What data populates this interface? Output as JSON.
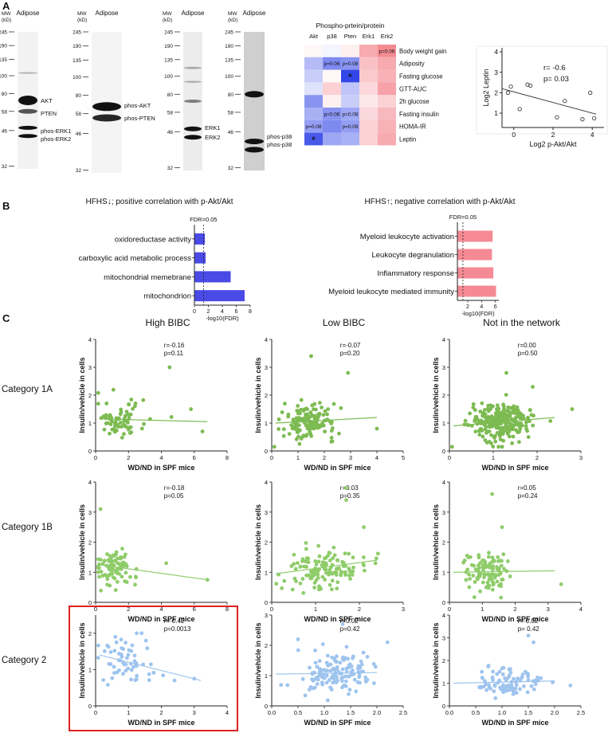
{
  "panel_labels": {
    "a": "A",
    "b": "B",
    "c": "C"
  },
  "blots": {
    "mw_header": "MW",
    "mw_unit": "(kD)",
    "tissue": "Adipose",
    "markers": [
      "245",
      "190",
      "135",
      "100",
      "80",
      "58",
      "46",
      "32"
    ],
    "blot1_labels": [
      "AKT",
      "PTEN",
      "phos-ERK1",
      "phos-ERK2"
    ],
    "blot2_labels": [
      "phos-AKT",
      "phos-PTEN"
    ],
    "blot3_labels": [
      "ERK1",
      "ERK2"
    ],
    "blot4_labels": [
      "phos-p38",
      "phos-p38"
    ]
  },
  "heatmap": {
    "title": "Phospho-prtein/protein",
    "columns": [
      "Akt",
      "p38",
      "Pten",
      "Erk1",
      "Erk2"
    ],
    "rows": [
      "Body weight gain",
      "Adiposity",
      "Fasting glucose",
      "GTT-AUC",
      "2h glucose",
      "Fasting insulin",
      "HOMA-IR",
      "Leptin"
    ],
    "values": [
      [
        0.05,
        -0.05,
        0.1,
        0.55,
        0.75
      ],
      [
        -0.35,
        -0.6,
        -0.55,
        0.4,
        0.55
      ],
      [
        -0.25,
        0.05,
        -0.95,
        0.35,
        0.5
      ],
      [
        -0.15,
        0.3,
        -0.3,
        0.25,
        0.6
      ],
      [
        -0.55,
        0.1,
        -0.25,
        0.15,
        0.3
      ],
      [
        -0.4,
        -0.55,
        -0.45,
        0.25,
        0.45
      ],
      [
        -0.5,
        -0.6,
        -0.5,
        0.3,
        0.5
      ],
      [
        -0.85,
        -0.45,
        -0.4,
        0.3,
        0.55
      ]
    ],
    "annotations": [
      {
        "row": 0,
        "col": 4,
        "text": "p=0.06"
      },
      {
        "row": 1,
        "col": 1,
        "text": "p=0.06"
      },
      {
        "row": 1,
        "col": 2,
        "text": "p=0.08"
      },
      {
        "row": 2,
        "col": 2,
        "text": "*"
      },
      {
        "row": 5,
        "col": 1,
        "text": "p=0.06"
      },
      {
        "row": 5,
        "col": 2,
        "text": "p=0.08"
      },
      {
        "row": 6,
        "col": 2,
        "text": "p=0.09"
      },
      {
        "row": 6,
        "col": 0,
        "text": "p=0.08"
      },
      {
        "row": 7,
        "col": 0,
        "text": "*"
      }
    ]
  },
  "scatter_a": {
    "r_text": "r= -0.6",
    "p_text": "p=  0.03",
    "xlabel": "Log2 p-Akt/Akt",
    "ylabel": "Log2 Leptin",
    "xticks": [
      "0",
      "2",
      "4"
    ],
    "yticks": [
      "1",
      "2",
      "3",
      "4"
    ],
    "xlim": [
      -0.6,
      4.6
    ],
    "ylim": [
      0.3,
      4.2
    ],
    "points": [
      [
        -0.3,
        2.0
      ],
      [
        -0.15,
        2.3
      ],
      [
        0.3,
        1.2
      ],
      [
        0.7,
        2.4
      ],
      [
        0.85,
        2.35
      ],
      [
        2.2,
        0.8
      ],
      [
        2.6,
        1.6
      ],
      [
        3.5,
        0.7
      ],
      [
        3.9,
        2.0
      ],
      [
        4.1,
        0.75
      ]
    ],
    "fit": [
      [
        -0.6,
        2.2
      ],
      [
        4.2,
        0.95
      ]
    ]
  },
  "panel_b": {
    "left_title": "HFHS↓;  positive correlation with p-Akt/Akt",
    "right_title": "HFHS↑;  negative correlation with p-Akt/Akt",
    "fdr_label": "FDR=0.05",
    "xlabel": "-log10(FDR)",
    "left_ticks": [
      "0",
      "2",
      "4",
      "6",
      "8"
    ],
    "right_ticks": [
      "2",
      "4",
      "6"
    ],
    "left_terms": [
      "oxidoreductase activity",
      "carboxylic acid metabolic process",
      "mitochondrial memebrane",
      "mitochondrion"
    ],
    "left_values": [
      1.5,
      1.6,
      5.2,
      7.2
    ],
    "right_terms": [
      "Myeloid leukocyte activation",
      "Leukocyte degranulation",
      "Inflammatory response",
      "Myeloid leukocyte mediated immunity"
    ],
    "right_values": [
      5.6,
      5.5,
      5.7,
      6.1
    ],
    "colors": {
      "left": "#4a4ae6",
      "right": "#f58a95"
    }
  },
  "panel_c": {
    "column_titles": [
      "High BIBC",
      "Low BIBC",
      "Not in the network"
    ],
    "row_titles": [
      "Category 1A",
      "Category 1B",
      "Category 2"
    ],
    "xlabel": "WD/ND in SPF mice",
    "ylabel": "Insulin/vehicle in cells",
    "colors": {
      "1A": "#7dbb52",
      "1B": "#8fcc6a",
      "2": "#9ec4ee"
    },
    "plots": [
      {
        "row": 0,
        "col": 0,
        "r": "r=-0.16",
        "p": "p=0.11",
        "xmax": 8,
        "xticks": [
          "0",
          "2",
          "4",
          "6",
          "8"
        ],
        "ymax": 4,
        "yticks": [
          "0",
          "1",
          "2",
          "3",
          "4"
        ],
        "n": 70,
        "cx": 1.5,
        "sx": 0.8,
        "fit": [
          1.15,
          1.05
        ],
        "out": [
          [
            4.5,
            3.0
          ],
          [
            6.5,
            0.7
          ],
          [
            5.8,
            1.5
          ]
        ]
      },
      {
        "row": 0,
        "col": 1,
        "r": "r=-0.07",
        "p": "p=0.20",
        "xmax": 5,
        "xticks": [
          "0",
          "1",
          "2",
          "3",
          "4",
          "5"
        ],
        "ymax": 4,
        "yticks": [
          "0",
          "1",
          "2",
          "3",
          "4"
        ],
        "n": 150,
        "cx": 1.4,
        "sx": 0.5,
        "fit": [
          1.0,
          1.2
        ],
        "out": [
          [
            2.9,
            2.8
          ],
          [
            4.0,
            0.8
          ],
          [
            1.5,
            3.4
          ]
        ]
      },
      {
        "row": 0,
        "col": 2,
        "r": "r=0.00",
        "p": "p=0.50",
        "xmax": 3,
        "xticks": [
          "0",
          "1",
          "2",
          "3"
        ],
        "ymax": 4,
        "yticks": [
          "0",
          "1",
          "2",
          "3",
          "4"
        ],
        "n": 280,
        "cx": 1.2,
        "sx": 0.35,
        "fit": [
          0.9,
          1.2
        ],
        "out": [
          [
            1.3,
            2.8
          ],
          [
            2.8,
            1.5
          ],
          [
            1.9,
            2.3
          ]
        ]
      },
      {
        "row": 1,
        "col": 0,
        "r": "r=-0.18",
        "p": "p=0.05",
        "xmax": 8,
        "xticks": [
          "0",
          "2",
          "4",
          "6",
          "8"
        ],
        "ymax": 4,
        "yticks": [
          "0",
          "1",
          "2",
          "3",
          "4"
        ],
        "n": 90,
        "cx": 1.1,
        "sx": 0.6,
        "fit": [
          1.25,
          0.75
        ],
        "out": [
          [
            0.3,
            3.1
          ],
          [
            4.3,
            1.3
          ],
          [
            6.8,
            0.75
          ]
        ]
      },
      {
        "row": 1,
        "col": 1,
        "r": "r=0.03",
        "p": "p=0.35",
        "xmax": 3,
        "xticks": [
          "0",
          "1",
          "2",
          "3"
        ],
        "ymax": 4,
        "yticks": [
          "0",
          "1",
          "2",
          "3",
          "4"
        ],
        "n": 130,
        "cx": 1.2,
        "sx": 0.45,
        "fit": [
          0.95,
          1.4
        ],
        "out": [
          [
            1.7,
            3.8
          ],
          [
            1.7,
            3.4
          ],
          [
            2.1,
            2.5
          ]
        ]
      },
      {
        "row": 1,
        "col": 2,
        "r": "r=0.05",
        "p": "p=0.24",
        "xmax": 4,
        "xticks": [
          "0",
          "1",
          "2",
          "3",
          "4"
        ],
        "ymax": 4,
        "yticks": [
          "0",
          "1",
          "2",
          "3",
          "4"
        ],
        "n": 110,
        "cx": 1.1,
        "sx": 0.3,
        "fit": [
          1.0,
          1.05
        ],
        "out": [
          [
            1.3,
            3.6
          ],
          [
            3.4,
            0.6
          ],
          [
            1.6,
            2.5
          ]
        ]
      },
      {
        "row": 2,
        "col": 0,
        "r": "r=-0.42",
        "p": "p=0.0013",
        "xmax": 4,
        "xticks": [
          "0",
          "1",
          "2",
          "3",
          "4"
        ],
        "ymax": 2.5,
        "yticks": [
          "0",
          "1",
          "2"
        ],
        "n": 60,
        "cx": 1.0,
        "sx": 0.5,
        "fit": [
          1.4,
          0.7
        ],
        "out": [
          [
            3.0,
            0.75
          ],
          [
            0.6,
            1.9
          ],
          [
            2.4,
            0.7
          ]
        ]
      },
      {
        "row": 2,
        "col": 1,
        "r": "r=0.02",
        "p": "p=0.42",
        "xmax": 2.5,
        "xticks": [
          "0.0",
          "0.5",
          "1.0",
          "1.5",
          "2.0",
          "2.5"
        ],
        "ymax": 3,
        "yticks": [
          "0",
          "1",
          "2",
          "3"
        ],
        "n": 140,
        "cx": 1.2,
        "sx": 0.35,
        "fit": [
          1.05,
          1.1
        ],
        "out": [
          [
            0.5,
            2.2
          ],
          [
            2.2,
            2.1
          ],
          [
            1.35,
            2.7
          ]
        ]
      },
      {
        "row": 2,
        "col": 2,
        "r": "r=-0.02",
        "p": "p= 0.42",
        "xmax": 2.5,
        "xticks": [
          "0.0",
          "0.5",
          "1.0",
          "1.5",
          "2.0",
          "2.5"
        ],
        "ymax": 4,
        "yticks": [
          "0",
          "1",
          "2",
          "3",
          "4"
        ],
        "n": 90,
        "cx": 1.15,
        "sx": 0.3,
        "fit": [
          1.0,
          1.1
        ],
        "out": [
          [
            1.5,
            3.1
          ],
          [
            1.6,
            2.8
          ],
          [
            2.3,
            0.9
          ]
        ]
      }
    ]
  }
}
